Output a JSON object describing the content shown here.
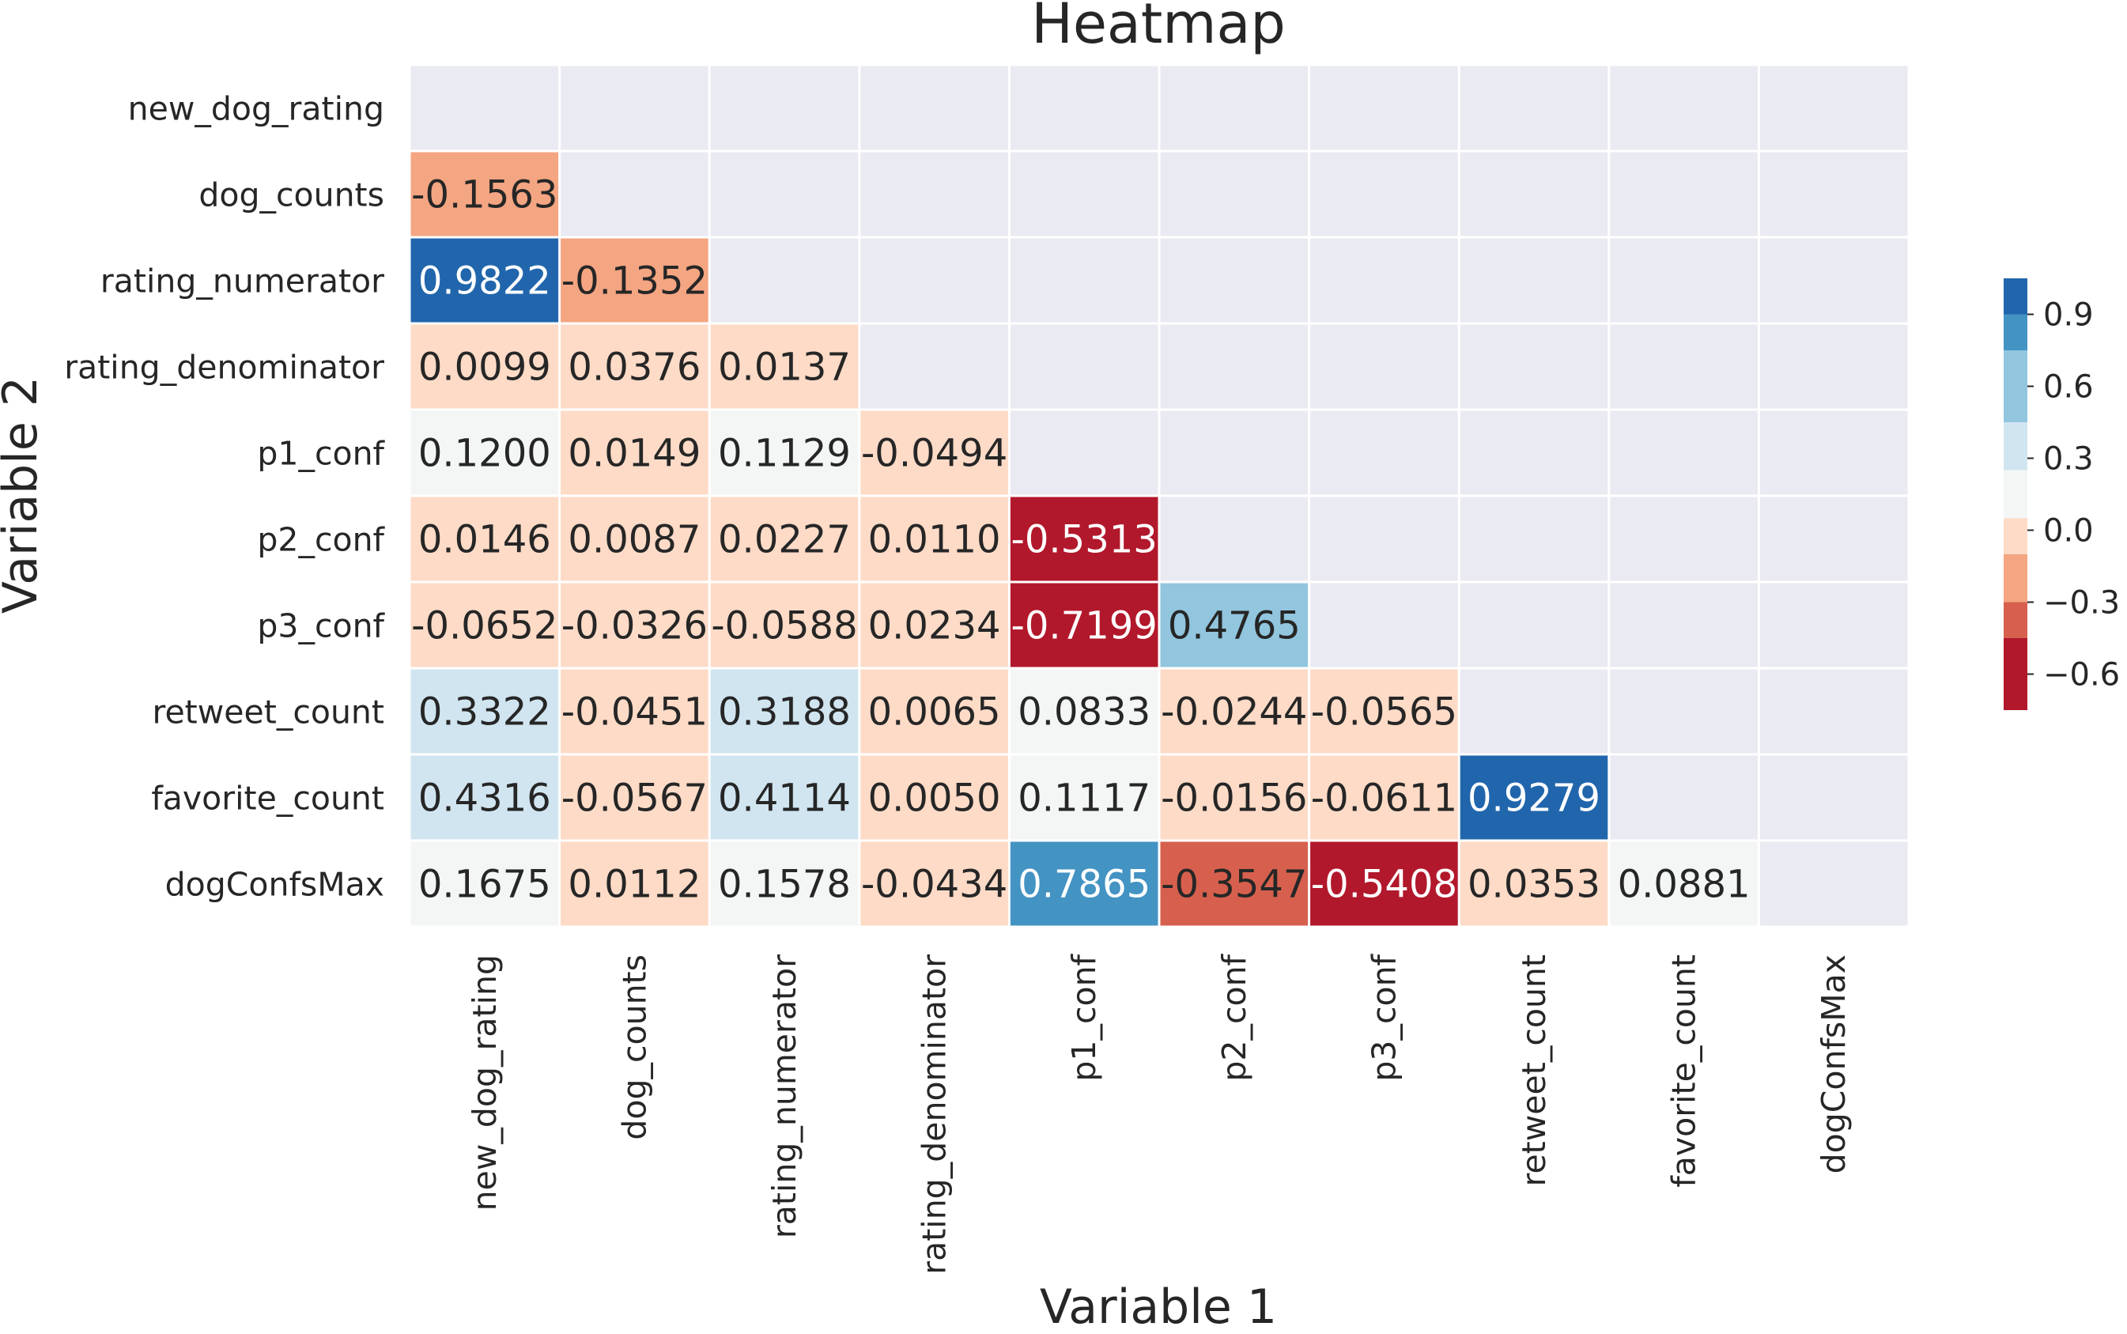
{
  "chart_data": {
    "type": "heatmap",
    "title": "Heatmap",
    "xlabel": "Variable 1",
    "ylabel": "Variable 2",
    "x_categories": [
      "new_dog_rating",
      "dog_counts",
      "rating_numerator",
      "rating_denominator",
      "p1_conf",
      "p2_conf",
      "p3_conf",
      "retweet_count",
      "favorite_count",
      "dogConfsMax"
    ],
    "y_categories": [
      "new_dog_rating",
      "dog_counts",
      "rating_numerator",
      "rating_denominator",
      "p1_conf",
      "p2_conf",
      "p3_conf",
      "retweet_count",
      "favorite_count",
      "dogConfsMax"
    ],
    "mask": "upper triangle including diagonal",
    "cells": [
      {
        "row": 1,
        "col": 0,
        "value": -0.1563,
        "label": "-0.1563"
      },
      {
        "row": 2,
        "col": 0,
        "value": 0.9822,
        "label": "0.9822"
      },
      {
        "row": 2,
        "col": 1,
        "value": -0.1352,
        "label": "-0.1352"
      },
      {
        "row": 3,
        "col": 0,
        "value": 0.0099,
        "label": "0.0099"
      },
      {
        "row": 3,
        "col": 1,
        "value": 0.0376,
        "label": "0.0376"
      },
      {
        "row": 3,
        "col": 2,
        "value": 0.0137,
        "label": "0.0137"
      },
      {
        "row": 4,
        "col": 0,
        "value": 0.12,
        "label": "0.1200"
      },
      {
        "row": 4,
        "col": 1,
        "value": 0.0149,
        "label": "0.0149"
      },
      {
        "row": 4,
        "col": 2,
        "value": 0.1129,
        "label": "0.1129"
      },
      {
        "row": 4,
        "col": 3,
        "value": -0.0494,
        "label": "-0.0494"
      },
      {
        "row": 5,
        "col": 0,
        "value": 0.0146,
        "label": "0.0146"
      },
      {
        "row": 5,
        "col": 1,
        "value": 0.0087,
        "label": "0.0087"
      },
      {
        "row": 5,
        "col": 2,
        "value": 0.0227,
        "label": "0.0227"
      },
      {
        "row": 5,
        "col": 3,
        "value": 0.011,
        "label": "0.0110"
      },
      {
        "row": 5,
        "col": 4,
        "value": -0.5313,
        "label": "-0.5313"
      },
      {
        "row": 6,
        "col": 0,
        "value": -0.0652,
        "label": "-0.0652"
      },
      {
        "row": 6,
        "col": 1,
        "value": -0.0326,
        "label": "-0.0326"
      },
      {
        "row": 6,
        "col": 2,
        "value": -0.0588,
        "label": "-0.0588"
      },
      {
        "row": 6,
        "col": 3,
        "value": 0.0234,
        "label": "0.0234"
      },
      {
        "row": 6,
        "col": 4,
        "value": -0.7199,
        "label": "-0.7199"
      },
      {
        "row": 6,
        "col": 5,
        "value": 0.4765,
        "label": "0.4765"
      },
      {
        "row": 7,
        "col": 0,
        "value": 0.3322,
        "label": "0.3322"
      },
      {
        "row": 7,
        "col": 1,
        "value": -0.0451,
        "label": "-0.0451"
      },
      {
        "row": 7,
        "col": 2,
        "value": 0.3188,
        "label": "0.3188"
      },
      {
        "row": 7,
        "col": 3,
        "value": 0.0065,
        "label": "0.0065"
      },
      {
        "row": 7,
        "col": 4,
        "value": 0.0833,
        "label": "0.0833"
      },
      {
        "row": 7,
        "col": 5,
        "value": -0.0244,
        "label": "-0.0244"
      },
      {
        "row": 7,
        "col": 6,
        "value": -0.0565,
        "label": "-0.0565"
      },
      {
        "row": 8,
        "col": 0,
        "value": 0.4316,
        "label": "0.4316"
      },
      {
        "row": 8,
        "col": 1,
        "value": -0.0567,
        "label": "-0.0567"
      },
      {
        "row": 8,
        "col": 2,
        "value": 0.4114,
        "label": "0.4114"
      },
      {
        "row": 8,
        "col": 3,
        "value": 0.005,
        "label": "0.0050"
      },
      {
        "row": 8,
        "col": 4,
        "value": 0.1117,
        "label": "0.1117"
      },
      {
        "row": 8,
        "col": 5,
        "value": -0.0156,
        "label": "-0.0156"
      },
      {
        "row": 8,
        "col": 6,
        "value": -0.0611,
        "label": "-0.0611"
      },
      {
        "row": 8,
        "col": 7,
        "value": 0.9279,
        "label": "0.9279"
      },
      {
        "row": 9,
        "col": 0,
        "value": 0.1675,
        "label": "0.1675"
      },
      {
        "row": 9,
        "col": 1,
        "value": 0.0112,
        "label": "0.0112"
      },
      {
        "row": 9,
        "col": 2,
        "value": 0.1578,
        "label": "0.1578"
      },
      {
        "row": 9,
        "col": 3,
        "value": -0.0434,
        "label": "-0.0434"
      },
      {
        "row": 9,
        "col": 4,
        "value": 0.7865,
        "label": "0.7865"
      },
      {
        "row": 9,
        "col": 5,
        "value": -0.3547,
        "label": "-0.3547"
      },
      {
        "row": 9,
        "col": 6,
        "value": -0.5408,
        "label": "-0.5408"
      },
      {
        "row": 9,
        "col": 7,
        "value": 0.0353,
        "label": "0.0353"
      },
      {
        "row": 9,
        "col": 8,
        "value": 0.0881,
        "label": "0.0881"
      }
    ],
    "colorbar": {
      "range": [
        -0.75,
        1.05
      ],
      "ticks": [
        0.9,
        0.6,
        0.3,
        0.0,
        -0.3,
        -0.6
      ],
      "tick_labels": [
        "0.9",
        "0.6",
        "0.3",
        "0.0",
        "−0.3",
        "−0.6"
      ],
      "bins": [
        {
          "from": 0.9,
          "to": 1.05,
          "color": "#2166ac"
        },
        {
          "from": 0.75,
          "to": 0.9,
          "color": "#4393c3"
        },
        {
          "from": 0.45,
          "to": 0.75,
          "color": "#92c5de"
        },
        {
          "from": 0.25,
          "to": 0.45,
          "color": "#d1e5f0"
        },
        {
          "from": 0.05,
          "to": 0.25,
          "color": "#f4f6f6"
        },
        {
          "from": -0.1,
          "to": 0.05,
          "color": "#fddbc7"
        },
        {
          "from": -0.3,
          "to": -0.1,
          "color": "#f4a582"
        },
        {
          "from": -0.45,
          "to": -0.3,
          "color": "#d6604d"
        },
        {
          "from": -0.75,
          "to": -0.45,
          "color": "#b2182b"
        }
      ]
    },
    "masked_color": "#eaeaf2",
    "grid_line_color": "#ffffff",
    "dark_text_color": "#262626",
    "light_text_color": "#ffffff"
  }
}
